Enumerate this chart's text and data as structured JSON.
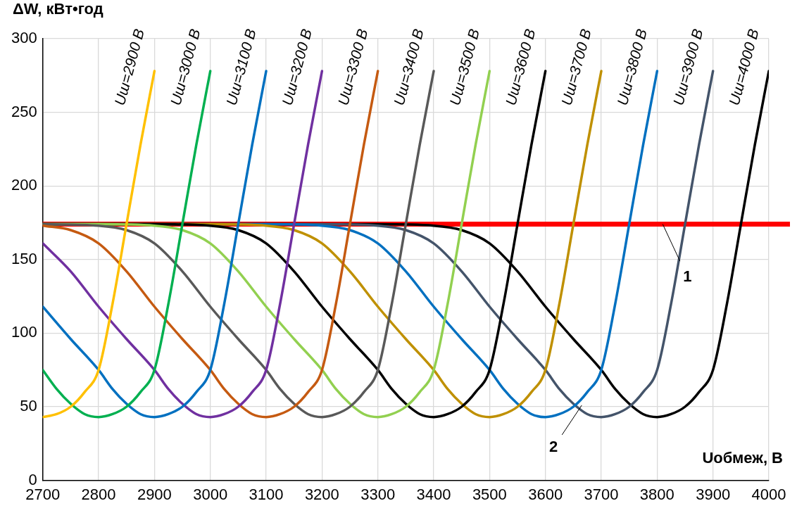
{
  "chart_data": {
    "type": "line",
    "ylabel": "ΔW, кВт•год",
    "xlabel": "Uобмеж, В",
    "xlim": [
      2700,
      4000
    ],
    "xticks": [
      2700,
      2800,
      2900,
      3000,
      3100,
      3200,
      3300,
      3400,
      3500,
      3600,
      3700,
      3800,
      3900,
      4000
    ],
    "ylim": [
      0,
      300
    ],
    "yticks": [
      0,
      50,
      100,
      150,
      200,
      250,
      300
    ],
    "grid": true,
    "legend": false,
    "marker": "none",
    "line_style": "solid",
    "series": [
      {
        "name": "Uш=2900 В",
        "color": "#ffc000",
        "x": [
          2700,
          2725,
          2750,
          2775,
          2800,
          2825,
          2850,
          2875,
          2900
        ],
        "values": [
          43,
          45,
          50,
          60,
          75,
          120,
          174,
          228,
          278
        ]
      },
      {
        "name": "Uш=3000 В",
        "color": "#00b050",
        "x": [
          2700,
          2725,
          2750,
          2775,
          2800,
          2825,
          2850,
          2875,
          2900,
          2925,
          2950,
          2975,
          3000
        ],
        "values": [
          75,
          62,
          52,
          45,
          43,
          45,
          50,
          60,
          75,
          120,
          174,
          228,
          278
        ]
      },
      {
        "name": "Uш=3100 В",
        "color": "#0070c0",
        "x": [
          2700,
          2750,
          2800,
          2825,
          2850,
          2875,
          2900,
          2925,
          2950,
          2975,
          3000,
          3025,
          3050,
          3075,
          3100
        ],
        "values": [
          118,
          96,
          75,
          62,
          52,
          45,
          43,
          45,
          50,
          60,
          75,
          120,
          174,
          228,
          278
        ]
      },
      {
        "name": "Uш=3200 В",
        "color": "#7030a0",
        "x": [
          2700,
          2750,
          2800,
          2850,
          2900,
          2925,
          2950,
          2975,
          3000,
          3025,
          3050,
          3075,
          3100,
          3125,
          3150,
          3175,
          3200
        ],
        "values": [
          161,
          142,
          118,
          96,
          75,
          62,
          52,
          45,
          43,
          45,
          50,
          60,
          75,
          120,
          174,
          228,
          278
        ]
      },
      {
        "name": "Uш=3300 В",
        "color": "#c55a11",
        "x": [
          2700,
          2750,
          2800,
          2850,
          2900,
          2950,
          3000,
          3025,
          3050,
          3075,
          3100,
          3125,
          3150,
          3175,
          3200,
          3225,
          3250,
          3275,
          3300
        ],
        "values": [
          173,
          170,
          161,
          142,
          118,
          96,
          75,
          62,
          52,
          45,
          43,
          45,
          50,
          60,
          75,
          120,
          174,
          228,
          278
        ]
      },
      {
        "name": "Uш=3400 В",
        "color": "#595959",
        "x": [
          2700,
          2800,
          2850,
          2900,
          2950,
          3000,
          3050,
          3100,
          3125,
          3150,
          3175,
          3200,
          3225,
          3250,
          3275,
          3300,
          3325,
          3350,
          3375,
          3400
        ],
        "values": [
          174,
          173,
          170,
          161,
          142,
          118,
          96,
          75,
          62,
          52,
          45,
          43,
          45,
          50,
          60,
          75,
          120,
          174,
          228,
          278
        ]
      },
      {
        "name": "Uш=3500 В",
        "color": "#92d050",
        "x": [
          2700,
          2800,
          2900,
          2950,
          3000,
          3050,
          3100,
          3150,
          3200,
          3225,
          3250,
          3275,
          3300,
          3325,
          3350,
          3375,
          3400,
          3425,
          3450,
          3475,
          3500
        ],
        "values": [
          174,
          174,
          173,
          170,
          161,
          142,
          118,
          96,
          75,
          62,
          52,
          45,
          43,
          45,
          50,
          60,
          75,
          120,
          174,
          228,
          278
        ]
      },
      {
        "name": "Uш=3600 В",
        "color": "#000000",
        "x": [
          2700,
          2900,
          3000,
          3050,
          3100,
          3150,
          3200,
          3250,
          3300,
          3325,
          3350,
          3375,
          3400,
          3425,
          3450,
          3475,
          3500,
          3525,
          3550,
          3575,
          3600
        ],
        "values": [
          174,
          174,
          173,
          170,
          161,
          142,
          118,
          96,
          75,
          62,
          52,
          45,
          43,
          45,
          50,
          60,
          75,
          120,
          174,
          228,
          278
        ]
      },
      {
        "name": "Uш=3700 В",
        "color": "#bf9000",
        "x": [
          2700,
          3000,
          3100,
          3150,
          3200,
          3250,
          3300,
          3350,
          3400,
          3425,
          3450,
          3475,
          3500,
          3525,
          3550,
          3575,
          3600,
          3625,
          3650,
          3675,
          3700
        ],
        "values": [
          174,
          174,
          173,
          170,
          161,
          142,
          118,
          96,
          75,
          62,
          52,
          45,
          43,
          45,
          50,
          60,
          75,
          120,
          174,
          228,
          278
        ]
      },
      {
        "name": "Uш=3800 В",
        "color": "#0070c0",
        "x": [
          2700,
          3100,
          3200,
          3250,
          3300,
          3350,
          3400,
          3450,
          3500,
          3525,
          3550,
          3575,
          3600,
          3625,
          3650,
          3675,
          3700,
          3725,
          3750,
          3775,
          3800
        ],
        "values": [
          174,
          174,
          173,
          170,
          161,
          142,
          118,
          96,
          75,
          62,
          52,
          45,
          43,
          45,
          50,
          60,
          75,
          120,
          174,
          228,
          278
        ]
      },
      {
        "name": "Uш=3900 В",
        "color": "#44546a",
        "x": [
          2700,
          3200,
          3300,
          3350,
          3400,
          3450,
          3500,
          3550,
          3600,
          3625,
          3650,
          3675,
          3700,
          3725,
          3750,
          3775,
          3800,
          3825,
          3850,
          3875,
          3900
        ],
        "values": [
          174,
          174,
          173,
          170,
          161,
          142,
          118,
          96,
          75,
          62,
          52,
          45,
          43,
          45,
          50,
          60,
          75,
          120,
          174,
          228,
          278
        ]
      },
      {
        "name": "Uш=4000 В",
        "color": "#000000",
        "x": [
          2700,
          3300,
          3400,
          3450,
          3500,
          3550,
          3600,
          3650,
          3700,
          3725,
          3750,
          3775,
          3800,
          3825,
          3850,
          3875,
          3900,
          3925,
          3950,
          3975,
          4000
        ],
        "values": [
          174,
          174,
          173,
          170,
          161,
          142,
          118,
          96,
          75,
          62,
          52,
          45,
          43,
          45,
          50,
          60,
          75,
          120,
          174,
          228,
          278
        ]
      }
    ],
    "ref_lines": [
      {
        "axis": "y",
        "value": 174,
        "color": "#ff0000"
      }
    ],
    "annotations": [
      {
        "text": "1",
        "x": 3810,
        "y": 174
      },
      {
        "text": "2",
        "x": 3665,
        "y": 51
      }
    ]
  }
}
